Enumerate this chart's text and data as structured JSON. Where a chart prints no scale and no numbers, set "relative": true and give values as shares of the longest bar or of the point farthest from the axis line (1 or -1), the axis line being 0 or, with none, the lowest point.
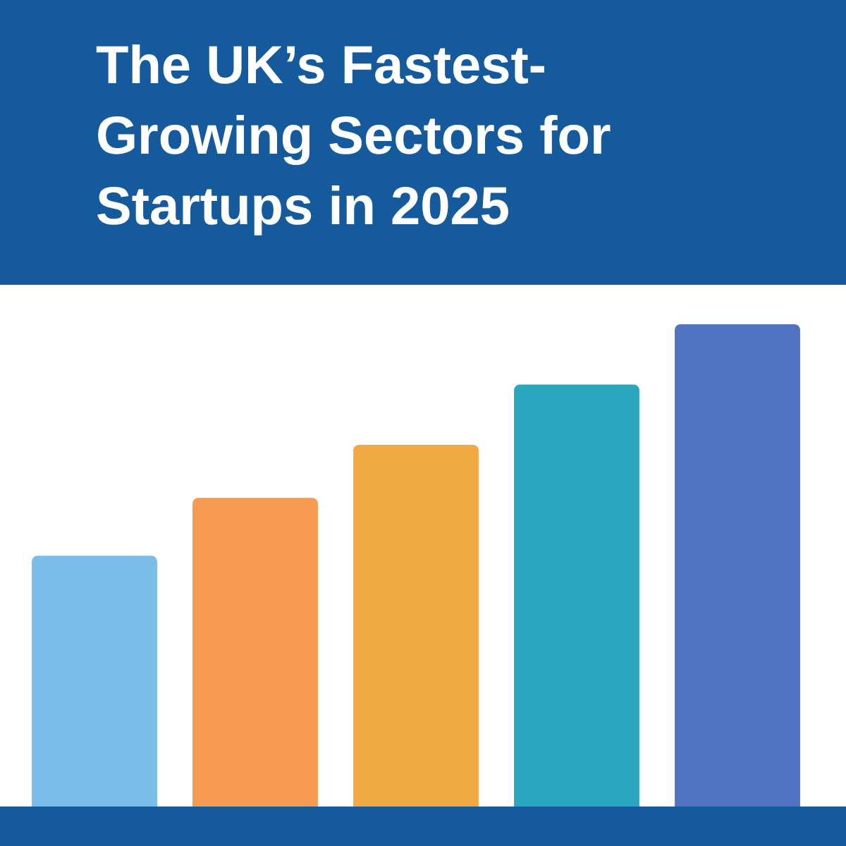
{
  "chart_data": {
    "type": "bar",
    "title": "The UK’s Fastest-Growing Sectors for Startups in 2025",
    "relative": true,
    "categories": [
      null,
      null,
      null,
      null,
      null
    ],
    "values": [
      0.52,
      0.64,
      0.75,
      0.875,
      1
    ],
    "colors": [
      "#7bbde9",
      "#f79a52",
      "#f0a843",
      "#2aa6bf",
      "#5174c2"
    ]
  }
}
